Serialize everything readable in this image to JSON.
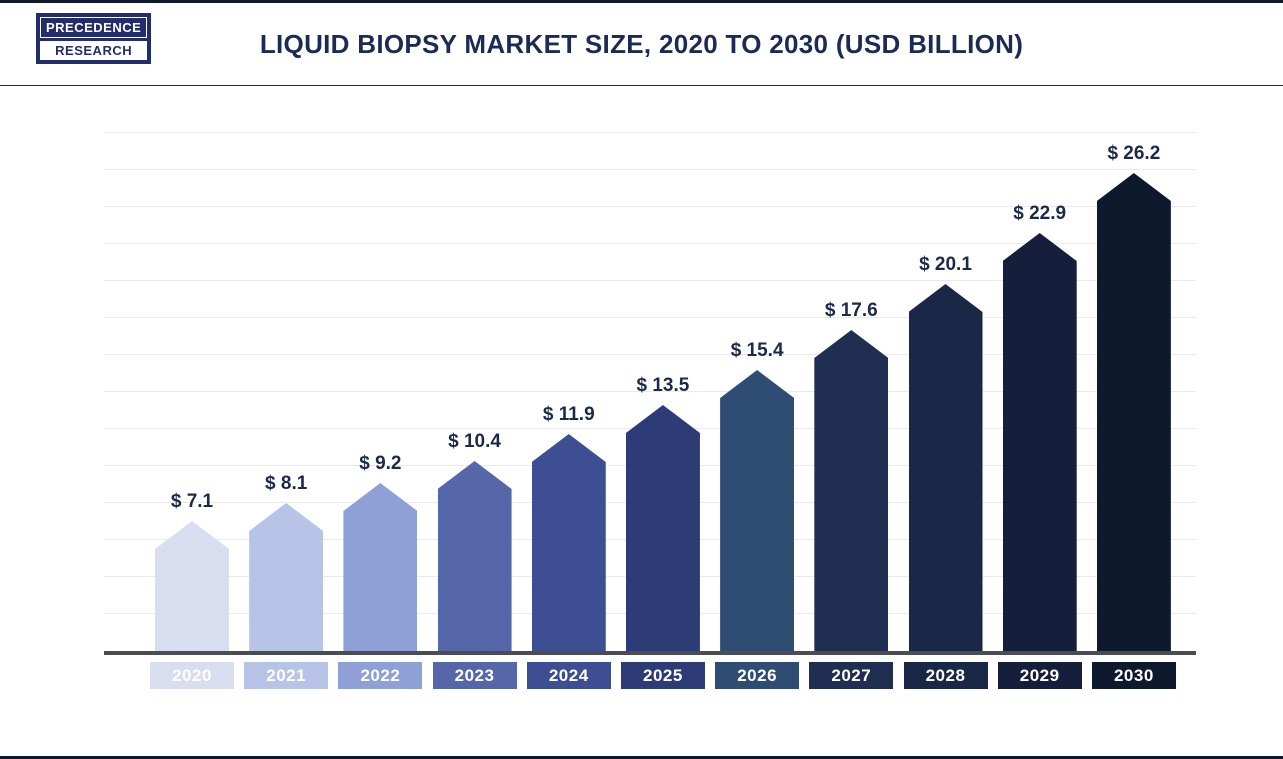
{
  "header": {
    "logo": {
      "line1": "PRECEDENCE",
      "line2": "RESEARCH"
    },
    "title": "LIQUID BIOPSY MARKET SIZE, 2020 TO 2030 (USD BILLION)"
  },
  "chart_data": {
    "type": "bar",
    "title": "LIQUID BIOPSY MARKET SIZE, 2020 TO 2030 (USD BILLION)",
    "categories": [
      "2020",
      "2021",
      "2022",
      "2023",
      "2024",
      "2025",
      "2026",
      "2027",
      "2028",
      "2029",
      "2030"
    ],
    "values": [
      7.1,
      8.1,
      9.2,
      10.4,
      11.9,
      13.5,
      15.4,
      17.6,
      20.1,
      22.9,
      26.2
    ],
    "value_labels": [
      "$ 7.1",
      "$ 8.1",
      "$ 9.2",
      "$ 10.4",
      "$ 11.9",
      "$ 13.5",
      "$ 15.4",
      "$ 17.6",
      "$ 20.1",
      "$ 22.9",
      "$ 26.2"
    ],
    "bar_colors": [
      "#d8ddf0",
      "#b7c3e7",
      "#8fa0d6",
      "#5667a9",
      "#3e4e93",
      "#2d3c77",
      "#2f4d72",
      "#202e52",
      "#1b2746",
      "#151f3b",
      "#0f192e"
    ],
    "xlabel": "",
    "ylabel": "",
    "ylim": [
      0,
      28
    ],
    "grid": true,
    "legend_position": "none",
    "bar_shape": "pentagon-top",
    "units": "USD Billion"
  },
  "colors": {
    "title_text": "#1b2b55",
    "value_label_text": "#1c2949",
    "year_label_text": "#ffffff",
    "axis_line": "#4c4c55",
    "gridline": "#eaeaee",
    "logo_background": "#232d6b",
    "page_border": "#10182e"
  }
}
